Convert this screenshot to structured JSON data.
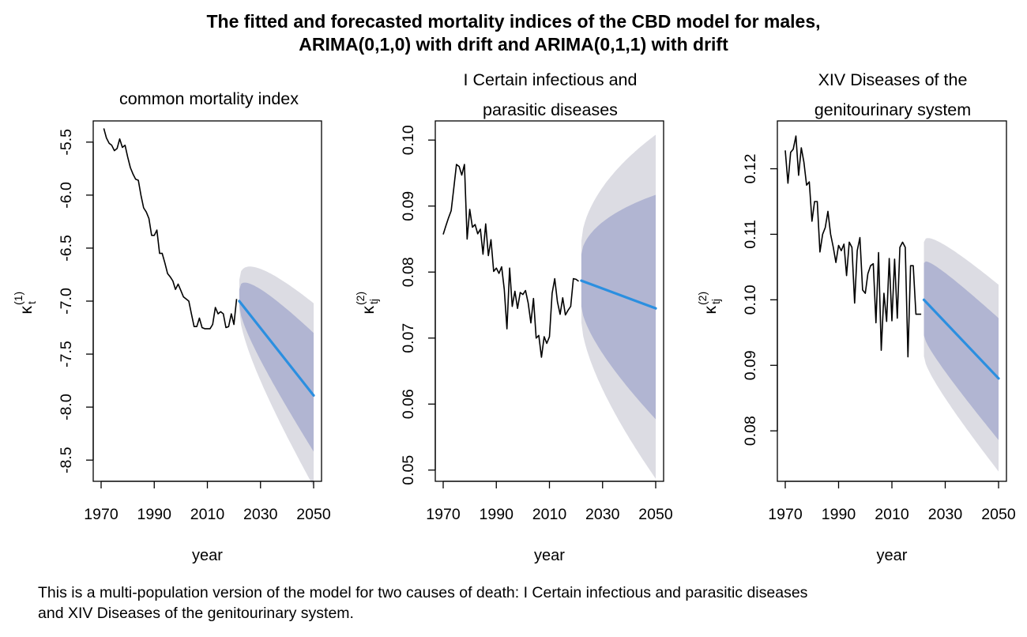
{
  "title": {
    "line1": "The fitted and forecasted mortality indices of the CBD model for males,",
    "line2": "ARIMA(0,1,0) with drift and ARIMA(0,1,1) with drift"
  },
  "caption": {
    "line1": "This is a multi-population version of the model for two causes of death: I Certain infectious and parasitic diseases",
    "line2": "and XIV Diseases of the genitourinary system."
  },
  "colors": {
    "history_line": "#000000",
    "forecast_line": "#2b8fe0",
    "band_inner": "#b1b5d2",
    "band_outer": "#dcdce3"
  },
  "chart_data": [
    {
      "type": "line",
      "title": "common mortality index",
      "xlabel": "year",
      "ylabel": "κ_t^(1)",
      "ylabel_main": "κ",
      "ylabel_sub": "t",
      "ylabel_sup": "(1)",
      "xlim": [
        1970,
        2050
      ],
      "ylim": [
        -8.7,
        -5.3
      ],
      "xticks": [
        1970,
        1990,
        2010,
        2030,
        2050
      ],
      "yticks": [
        -8.5,
        -8.0,
        -7.5,
        -7.0,
        -6.5,
        -6.0,
        -5.5
      ],
      "ytick_labels": [
        "-8.5",
        "-8.0",
        "-7.5",
        "-7.0",
        "-6.5",
        "-6.0",
        "-5.5"
      ],
      "history": {
        "x": [
          1971,
          1972,
          1973,
          1974,
          1975,
          1976,
          1977,
          1978,
          1979,
          1980,
          1981,
          1982,
          1983,
          1984,
          1985,
          1986,
          1987,
          1988,
          1989,
          1990,
          1991,
          1992,
          1993,
          1994,
          1995,
          1996,
          1997,
          1998,
          1999,
          2000,
          2001,
          2002,
          2003,
          2004,
          2005,
          2006,
          2007,
          2008,
          2009,
          2010,
          2011,
          2012,
          2013,
          2014,
          2015,
          2016,
          2017,
          2018,
          2019,
          2020,
          2021
        ],
        "y": [
          -5.37,
          -5.46,
          -5.51,
          -5.53,
          -5.58,
          -5.56,
          -5.47,
          -5.55,
          -5.53,
          -5.64,
          -5.74,
          -5.8,
          -5.85,
          -5.86,
          -6.0,
          -6.12,
          -6.16,
          -6.22,
          -6.38,
          -6.38,
          -6.33,
          -6.55,
          -6.55,
          -6.64,
          -6.74,
          -6.77,
          -6.81,
          -6.89,
          -6.84,
          -6.9,
          -6.96,
          -6.98,
          -7.0,
          -7.12,
          -7.24,
          -7.24,
          -7.16,
          -7.25,
          -7.26,
          -7.26,
          -7.26,
          -7.22,
          -7.06,
          -7.12,
          -7.1,
          -7.12,
          -7.25,
          -7.24,
          -7.12,
          -7.22,
          -6.98
        ]
      },
      "forecast": {
        "x": [
          2022,
          2050
        ],
        "y": [
          -7.0,
          -7.89
        ],
        "inner_lower": [
          -7.04,
          -8.42
        ],
        "inner_upper": [
          -6.89,
          -7.3
        ],
        "outer_lower": [
          -7.08,
          -8.75
        ],
        "outer_upper": [
          -6.8,
          -7.02
        ],
        "curvature": 0.5
      }
    },
    {
      "type": "line",
      "title": "",
      "title_line1": "I Certain infectious and",
      "title_line2": "parasitic diseases",
      "xlabel": "year",
      "ylabel": "κ_tj^(2)",
      "ylabel_main": "κ",
      "ylabel_sub": "tj",
      "ylabel_sup": "(2)",
      "xlim": [
        1970,
        2050
      ],
      "ylim": [
        0.0483,
        0.1029
      ],
      "xticks": [
        1970,
        1990,
        2010,
        2030,
        2050
      ],
      "yticks": [
        0.05,
        0.06,
        0.07,
        0.08,
        0.09,
        0.1
      ],
      "ytick_labels": [
        "0.05",
        "0.06",
        "0.07",
        "0.08",
        "0.09",
        "0.10"
      ],
      "history": {
        "x": [
          1970,
          1971,
          1972,
          1973,
          1974,
          1975,
          1976,
          1977,
          1978,
          1979,
          1980,
          1981,
          1982,
          1983,
          1984,
          1985,
          1986,
          1987,
          1988,
          1989,
          1990,
          1991,
          1992,
          1993,
          1994,
          1995,
          1996,
          1997,
          1998,
          1999,
          2000,
          2001,
          2002,
          2003,
          2004,
          2005,
          2006,
          2007,
          2008,
          2009,
          2010,
          2011,
          2012,
          2013,
          2014,
          2015,
          2016,
          2017,
          2018,
          2019,
          2020,
          2021
        ],
        "y": [
          0.0857,
          0.087,
          0.0882,
          0.0893,
          0.0928,
          0.0963,
          0.096,
          0.0947,
          0.0963,
          0.085,
          0.0895,
          0.0868,
          0.0872,
          0.0858,
          0.0865,
          0.0827,
          0.0873,
          0.0825,
          0.0849,
          0.0801,
          0.0806,
          0.0798,
          0.0808,
          0.0774,
          0.0714,
          0.0806,
          0.0748,
          0.0771,
          0.0745,
          0.0769,
          0.0766,
          0.0772,
          0.0753,
          0.0723,
          0.076,
          0.07,
          0.0704,
          0.0671,
          0.0702,
          0.0692,
          0.0702,
          0.0768,
          0.079,
          0.0755,
          0.0736,
          0.0761,
          0.0735,
          0.0742,
          0.0748,
          0.079,
          0.0789,
          0.0786
        ]
      },
      "forecast": {
        "x": [
          2022,
          2050
        ],
        "y": [
          0.0787,
          0.0745
        ],
        "inner_lower": [
          0.0748,
          0.0577
        ],
        "inner_upper": [
          0.0827,
          0.0917
        ],
        "outer_lower": [
          0.0724,
          0.0487
        ],
        "outer_upper": [
          0.0847,
          0.1008
        ],
        "curvature": 0.62
      }
    },
    {
      "type": "line",
      "title": "",
      "title_line1": "XIV Diseases of the",
      "title_line2": "genitourinary system",
      "xlabel": "year",
      "ylabel": "κ_tj^(2)",
      "ylabel_main": "κ",
      "ylabel_sub": "tj",
      "ylabel_sup": "(2)",
      "xlim": [
        1970,
        2050
      ],
      "ylim": [
        0.0723,
        0.1273
      ],
      "xticks": [
        1970,
        1990,
        2010,
        2030,
        2050
      ],
      "yticks": [
        0.08,
        0.09,
        0.1,
        0.11,
        0.12
      ],
      "ytick_labels": [
        "0.08",
        "0.09",
        "0.10",
        "0.11",
        "0.12"
      ],
      "history": {
        "x": [
          1970,
          1971,
          1972,
          1973,
          1974,
          1975,
          1976,
          1977,
          1978,
          1979,
          1980,
          1981,
          1982,
          1983,
          1984,
          1985,
          1986,
          1987,
          1988,
          1989,
          1990,
          1991,
          1992,
          1993,
          1994,
          1995,
          1996,
          1997,
          1998,
          1999,
          2000,
          2001,
          2002,
          2003,
          2004,
          2005,
          2006,
          2007,
          2008,
          2009,
          2010,
          2011,
          2012,
          2013,
          2014,
          2015,
          2016,
          2017,
          2018,
          2019,
          2020,
          2021
        ],
        "y": [
          0.1228,
          0.1178,
          0.1225,
          0.123,
          0.125,
          0.119,
          0.1232,
          0.121,
          0.1175,
          0.118,
          0.112,
          0.115,
          0.115,
          0.1073,
          0.11,
          0.111,
          0.1135,
          0.11,
          0.108,
          0.1057,
          0.1083,
          0.1075,
          0.1085,
          0.1037,
          0.1088,
          0.108,
          0.0995,
          0.1075,
          0.1095,
          0.1015,
          0.101,
          0.104,
          0.1052,
          0.1055,
          0.0965,
          0.1072,
          0.0923,
          0.101,
          0.0967,
          0.1063,
          0.0968,
          0.1062,
          0.0972,
          0.108,
          0.1088,
          0.108,
          0.0913,
          0.1052,
          0.1052,
          0.0978,
          0.0978,
          0.0978
        ]
      },
      "forecast": {
        "x": [
          2022,
          2050
        ],
        "y": [
          0.1,
          0.088
        ],
        "inner_lower": [
          0.0946,
          0.0786
        ],
        "inner_upper": [
          0.1056,
          0.0972
        ],
        "outer_lower": [
          0.0914,
          0.0738
        ],
        "outer_upper": [
          0.1088,
          0.1023
        ],
        "curvature": 0.5
      }
    }
  ]
}
